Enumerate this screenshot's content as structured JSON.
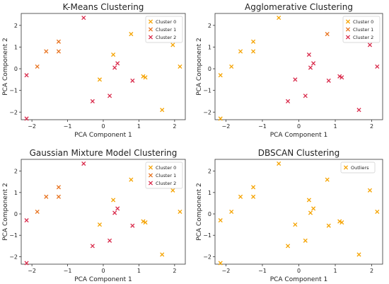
{
  "chart_data": [
    {
      "type": "scatter",
      "title": "K-Means Clustering",
      "xlabel": "PCA Component 1",
      "ylabel": "PCA Component 2",
      "xlim": [
        -2.3,
        2.3
      ],
      "ylim": [
        -2.35,
        2.55
      ],
      "xticks": [
        -2,
        -1,
        0,
        1,
        2
      ],
      "yticks": [
        -2,
        -1,
        0,
        1,
        2
      ],
      "grid": false,
      "legend_position": "top-right",
      "series": [
        {
          "name": "Cluster 0",
          "color": "#f5a300",
          "x": [
            -0.1,
            0.28,
            0.78,
            1.12,
            1.18,
            1.65,
            1.95,
            2.15
          ],
          "y": [
            -0.5,
            0.65,
            1.6,
            -0.35,
            -0.4,
            -1.9,
            1.1,
            0.1
          ]
        },
        {
          "name": "Cluster 1",
          "color": "#e8731f",
          "x": [
            -1.6,
            -1.25,
            -1.25,
            -1.85
          ],
          "y": [
            0.8,
            1.25,
            0.8,
            0.1
          ]
        },
        {
          "name": "Cluster 2",
          "color": "#d92b4b",
          "x": [
            -2.15,
            -2.15,
            -0.55,
            -0.3,
            0.18,
            0.32,
            0.4,
            0.82
          ],
          "y": [
            -0.3,
            -2.3,
            2.35,
            -1.5,
            -1.25,
            0.05,
            0.25,
            -0.55
          ]
        }
      ]
    },
    {
      "type": "scatter",
      "title": "Agglomerative Clustering",
      "xlabel": "PCA Component 1",
      "ylabel": "PCA Component 2",
      "xlim": [
        -2.3,
        2.3
      ],
      "ylim": [
        -2.35,
        2.55
      ],
      "xticks": [
        -2,
        -1,
        0,
        1,
        2
      ],
      "yticks": [
        -2,
        -1,
        0,
        1,
        2
      ],
      "grid": false,
      "legend_position": "top-right",
      "series": [
        {
          "name": "Cluster 0",
          "color": "#f5a300",
          "x": [
            -2.15,
            -2.15,
            -1.85,
            -1.6,
            -1.25,
            -1.25,
            -0.55
          ],
          "y": [
            -0.3,
            -2.3,
            0.1,
            0.8,
            1.25,
            0.8,
            2.35
          ]
        },
        {
          "name": "Cluster 1",
          "color": "#e8731f",
          "x": [
            0.78
          ],
          "y": [
            1.6
          ]
        },
        {
          "name": "Cluster 2",
          "color": "#d92b4b",
          "x": [
            -0.3,
            -0.1,
            0.18,
            0.28,
            0.32,
            0.4,
            0.82,
            1.12,
            1.18,
            1.65,
            1.95,
            2.15
          ],
          "y": [
            -1.5,
            -0.5,
            -1.25,
            0.65,
            0.05,
            0.25,
            -0.55,
            -0.35,
            -0.4,
            -1.9,
            1.1,
            0.1
          ]
        }
      ]
    },
    {
      "type": "scatter",
      "title": "Gaussian Mixture Model Clustering",
      "xlabel": "PCA Component 1",
      "ylabel": "PCA Component 2",
      "xlim": [
        -2.3,
        2.3
      ],
      "ylim": [
        -2.35,
        2.55
      ],
      "xticks": [
        -2,
        -1,
        0,
        1,
        2
      ],
      "yticks": [
        -2,
        -1,
        0,
        1,
        2
      ],
      "grid": false,
      "legend_position": "top-right",
      "series": [
        {
          "name": "Cluster 0",
          "color": "#f5a300",
          "x": [
            -0.1,
            0.28,
            0.78,
            1.12,
            1.18,
            1.65,
            1.95,
            2.15
          ],
          "y": [
            -0.5,
            0.65,
            1.6,
            -0.35,
            -0.4,
            -1.9,
            1.1,
            0.1
          ]
        },
        {
          "name": "Cluster 1",
          "color": "#e8731f",
          "x": [
            -1.85,
            -1.6,
            -1.25,
            -1.25
          ],
          "y": [
            0.1,
            0.8,
            0.8,
            1.25
          ]
        },
        {
          "name": "Cluster 2",
          "color": "#d92b4b",
          "x": [
            -2.15,
            -2.15,
            -0.55,
            -0.3,
            0.18,
            0.32,
            0.4,
            0.82
          ],
          "y": [
            -0.3,
            -2.3,
            2.35,
            -1.5,
            -1.25,
            0.05,
            0.25,
            -0.55
          ]
        }
      ]
    },
    {
      "type": "scatter",
      "title": "DBSCAN Clustering",
      "xlabel": "PCA Component 1",
      "ylabel": "PCA Component 2",
      "xlim": [
        -2.3,
        2.3
      ],
      "ylim": [
        -2.35,
        2.55
      ],
      "xticks": [
        -2,
        -1,
        0,
        1,
        2
      ],
      "yticks": [
        -2,
        -1,
        0,
        1,
        2
      ],
      "grid": false,
      "legend_position": "top-left",
      "series": [
        {
          "name": "Outliers",
          "color": "#f5a300",
          "x": [
            -2.15,
            -2.15,
            -1.85,
            -1.6,
            -1.25,
            -1.25,
            -0.55,
            -0.3,
            -0.1,
            0.18,
            0.28,
            0.32,
            0.4,
            0.78,
            0.82,
            1.12,
            1.18,
            1.65,
            1.95,
            2.15
          ],
          "y": [
            -0.3,
            -2.3,
            0.1,
            0.8,
            1.25,
            0.8,
            2.35,
            -1.5,
            -0.5,
            -1.25,
            0.65,
            0.05,
            0.25,
            1.6,
            -0.55,
            -0.35,
            -0.4,
            -1.9,
            1.1,
            0.1
          ]
        }
      ]
    }
  ]
}
